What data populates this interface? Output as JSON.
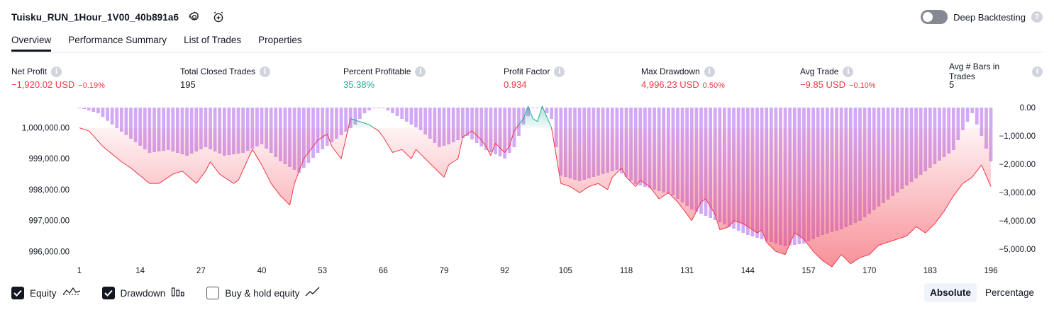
{
  "header": {
    "strategy_name": "Tuisku_RUN_1Hour_1V00_40b891a6",
    "settings_icon": "gear-icon",
    "alert_icon": "alarm-clock-add-icon",
    "deep_backtesting_label": "Deep Backtesting",
    "deep_backtesting_enabled": false,
    "help_icon": "question-icon"
  },
  "tabs": [
    {
      "label": "Overview",
      "active": true
    },
    {
      "label": "Performance Summary",
      "active": false
    },
    {
      "label": "List of Trades",
      "active": false
    },
    {
      "label": "Properties",
      "active": false
    }
  ],
  "stats": [
    {
      "label": "Net Profit",
      "value": "−1,920.02 USD",
      "sub": "−0.19%",
      "tone": "neg"
    },
    {
      "label": "Total Closed Trades",
      "value": "195",
      "sub": "",
      "tone": "neutral"
    },
    {
      "label": "Percent Profitable",
      "value": "35.38%",
      "sub": "",
      "tone": "pos"
    },
    {
      "label": "Profit Factor",
      "value": "0.934",
      "sub": "",
      "tone": "neg"
    },
    {
      "label": "Max Drawdown",
      "value": "4,996.23 USD",
      "sub": "0.50%",
      "tone": "neg"
    },
    {
      "label": "Avg Trade",
      "value": "−9.85 USD",
      "sub": "−0.10%",
      "tone": "neg"
    },
    {
      "label": "Avg # Bars in Trades",
      "value": "5",
      "sub": "",
      "tone": "neutral"
    }
  ],
  "legend": {
    "equity_label": "Equity",
    "equity_checked": true,
    "drawdown_label": "Drawdown",
    "drawdown_checked": true,
    "buyhold_label": "Buy & hold equity",
    "buyhold_checked": false
  },
  "scale": {
    "absolute_label": "Absolute",
    "percentage_label": "Percentage",
    "selected": "Absolute"
  },
  "colors": {
    "negative": "#f23645",
    "positive": "#22ab94",
    "drawdown_bar": "#d3a8f5",
    "equity_line": "#f23645",
    "equity_up_line": "#22ab94",
    "text": "#131722"
  },
  "chart_data": {
    "type": "area",
    "x_ticks": [
      1,
      14,
      27,
      40,
      53,
      66,
      79,
      92,
      105,
      118,
      131,
      144,
      157,
      170,
      183,
      196
    ],
    "y_left_ticks": [
      "1,000,000.00",
      "999,000.00",
      "998,000.00",
      "997,000.00",
      "996,000.00"
    ],
    "y_right_ticks": [
      "0.00",
      "−1,000.00",
      "−2,000.00",
      "−3,000.00",
      "−4,000.00",
      "−5,000.00"
    ],
    "left_range": [
      995800,
      1000700
    ],
    "right_range": [
      -5300,
      50
    ],
    "baseline": 1000000,
    "equity_keypoints": [
      [
        1,
        1000000
      ],
      [
        3,
        999900
      ],
      [
        6,
        999400
      ],
      [
        10,
        998900
      ],
      [
        12,
        998700
      ],
      [
        16,
        998200
      ],
      [
        18,
        998200
      ],
      [
        21,
        998500
      ],
      [
        23,
        998600
      ],
      [
        26,
        998200
      ],
      [
        28,
        998600
      ],
      [
        29,
        998900
      ],
      [
        31,
        998500
      ],
      [
        34,
        998200
      ],
      [
        35,
        998300
      ],
      [
        38,
        999300
      ],
      [
        40,
        998800
      ],
      [
        42,
        998200
      ],
      [
        44,
        997800
      ],
      [
        46,
        997500
      ],
      [
        47,
        998200
      ],
      [
        49,
        999000
      ],
      [
        50,
        999200
      ],
      [
        52,
        999600
      ],
      [
        54,
        999800
      ],
      [
        55,
        999400
      ],
      [
        57,
        999000
      ],
      [
        59,
        1000300
      ],
      [
        61,
        1000200
      ],
      [
        63,
        1000100
      ],
      [
        65,
        999900
      ],
      [
        66,
        999700
      ],
      [
        68,
        999200
      ],
      [
        70,
        999300
      ],
      [
        72,
        999000
      ],
      [
        73,
        999300
      ],
      [
        75,
        999000
      ],
      [
        77,
        998700
      ],
      [
        79,
        998400
      ],
      [
        80,
        998800
      ],
      [
        82,
        999000
      ],
      [
        83,
        999700
      ],
      [
        85,
        999900
      ],
      [
        87,
        999600
      ],
      [
        88,
        999400
      ],
      [
        89,
        999100
      ],
      [
        90,
        999500
      ],
      [
        92,
        999200
      ],
      [
        93,
        999400
      ],
      [
        94,
        999900
      ],
      [
        96,
        1000300
      ],
      [
        97,
        1000700
      ],
      [
        98,
        1000300
      ],
      [
        99,
        1000200
      ],
      [
        100,
        1000700
      ],
      [
        102,
        1000000
      ],
      [
        104,
        998200
      ],
      [
        106,
        998100
      ],
      [
        108,
        997900
      ],
      [
        110,
        998100
      ],
      [
        112,
        998200
      ],
      [
        114,
        998000
      ],
      [
        115,
        998400
      ],
      [
        117,
        998700
      ],
      [
        118,
        998400
      ],
      [
        120,
        998100
      ],
      [
        121,
        998300
      ],
      [
        123,
        998100
      ],
      [
        125,
        997700
      ],
      [
        127,
        997900
      ],
      [
        129,
        997600
      ],
      [
        131,
        997200
      ],
      [
        132,
        997000
      ],
      [
        134,
        997600
      ],
      [
        135,
        997700
      ],
      [
        137,
        997200
      ],
      [
        138,
        996700
      ],
      [
        140,
        996800
      ],
      [
        141,
        997000
      ],
      [
        143,
        996900
      ],
      [
        145,
        996700
      ],
      [
        146,
        996600
      ],
      [
        147,
        996700
      ],
      [
        148,
        996300
      ],
      [
        150,
        996000
      ],
      [
        152,
        995900
      ],
      [
        154,
        996600
      ],
      [
        156,
        996400
      ],
      [
        158,
        996000
      ],
      [
        160,
        995700
      ],
      [
        162,
        995500
      ],
      [
        164,
        995900
      ],
      [
        166,
        995600
      ],
      [
        168,
        995800
      ],
      [
        170,
        995900
      ],
      [
        172,
        996200
      ],
      [
        174,
        996300
      ],
      [
        176,
        996400
      ],
      [
        178,
        996500
      ],
      [
        180,
        996800
      ],
      [
        182,
        996600
      ],
      [
        184,
        996900
      ],
      [
        186,
        997300
      ],
      [
        188,
        997800
      ],
      [
        190,
        998200
      ],
      [
        192,
        998400
      ],
      [
        194,
        998800
      ],
      [
        196,
        998100
      ]
    ],
    "drawdown_keypoints": [
      [
        1,
        0
      ],
      [
        5,
        -200
      ],
      [
        8,
        -600
      ],
      [
        12,
        -1100
      ],
      [
        16,
        -1600
      ],
      [
        20,
        -1500
      ],
      [
        24,
        -1700
      ],
      [
        28,
        -1400
      ],
      [
        32,
        -1700
      ],
      [
        36,
        -1600
      ],
      [
        40,
        -1300
      ],
      [
        44,
        -1900
      ],
      [
        48,
        -2300
      ],
      [
        52,
        -1600
      ],
      [
        56,
        -1100
      ],
      [
        60,
        -600
      ],
      [
        62,
        -200
      ],
      [
        64,
        0
      ],
      [
        66,
        0
      ],
      [
        70,
        -400
      ],
      [
        74,
        -800
      ],
      [
        78,
        -1400
      ],
      [
        80,
        -1300
      ],
      [
        84,
        -1000
      ],
      [
        88,
        -1500
      ],
      [
        92,
        -1800
      ],
      [
        94,
        -1400
      ],
      [
        96,
        -600
      ],
      [
        98,
        0
      ],
      [
        100,
        0
      ],
      [
        102,
        -400
      ],
      [
        104,
        -2400
      ],
      [
        108,
        -2600
      ],
      [
        112,
        -2400
      ],
      [
        116,
        -2200
      ],
      [
        120,
        -2700
      ],
      [
        124,
        -2900
      ],
      [
        128,
        -3100
      ],
      [
        132,
        -3600
      ],
      [
        136,
        -3900
      ],
      [
        140,
        -4200
      ],
      [
        144,
        -4500
      ],
      [
        148,
        -4700
      ],
      [
        152,
        -4900
      ],
      [
        156,
        -4800
      ],
      [
        160,
        -4500
      ],
      [
        164,
        -4300
      ],
      [
        168,
        -4000
      ],
      [
        172,
        -3500
      ],
      [
        176,
        -3000
      ],
      [
        180,
        -2500
      ],
      [
        184,
        -2000
      ],
      [
        188,
        -1500
      ],
      [
        190,
        -800
      ],
      [
        192,
        -200
      ],
      [
        194,
        -1000
      ],
      [
        196,
        -1900
      ]
    ],
    "xlabel": "",
    "ylabel": ""
  }
}
